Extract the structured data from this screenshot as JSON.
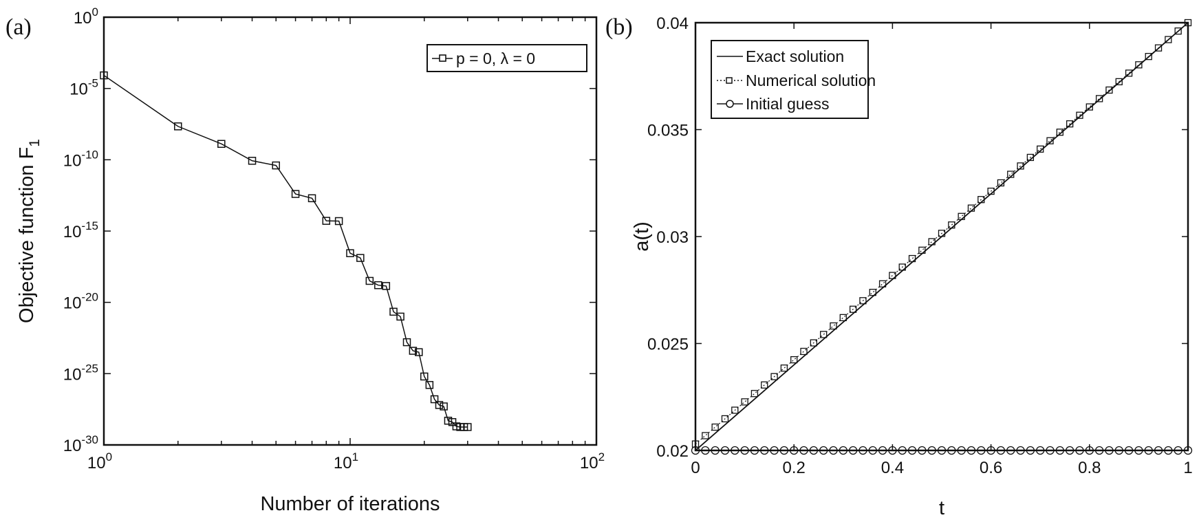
{
  "chart_data": [
    {
      "type": "line",
      "panel_label": "(a)",
      "title": "",
      "xlabel": "Number of iterations",
      "ylabel": "Objective function F",
      "ylabel_subscript": "1",
      "xscale": "log",
      "yscale": "log",
      "xlim": [
        1,
        100
      ],
      "ylim": [
        1e-30,
        1
      ],
      "x_tick_labels": [
        {
          "base": "10",
          "exp": "0"
        },
        {
          "base": "10",
          "exp": "1"
        },
        {
          "base": "10",
          "exp": "2"
        }
      ],
      "y_tick_labels": [
        {
          "base": "10",
          "exp": "0"
        },
        {
          "base": "10",
          "exp": "-5"
        },
        {
          "base": "10",
          "exp": "-10"
        },
        {
          "base": "10",
          "exp": "-15"
        },
        {
          "base": "10",
          "exp": "-20"
        },
        {
          "base": "10",
          "exp": "-25"
        },
        {
          "base": "10",
          "exp": "-30"
        }
      ],
      "legend_position": "top-right",
      "series": [
        {
          "name": "p = 0, λ = 0",
          "marker": "square",
          "line": "solid",
          "x": [
            1,
            2,
            3,
            4,
            5,
            6,
            7,
            8,
            9,
            10,
            11,
            12,
            13,
            14,
            15,
            16,
            17,
            18,
            19,
            20,
            21,
            22,
            23,
            24,
            25,
            26,
            27,
            28,
            29,
            30
          ],
          "y": [
            8.3e-05,
            2.2e-08,
            1.3e-09,
            8.5e-11,
            4e-11,
            4e-13,
            2e-13,
            5.2e-15,
            5e-15,
            2.8e-17,
            1.3e-17,
            3.2e-19,
            1.6e-19,
            1.4e-19,
            2.2e-21,
            1e-21,
            1.6e-23,
            4e-24,
            3.2e-24,
            6.3e-26,
            1.6e-26,
            1.6e-27,
            6.3e-28,
            5e-28,
            5e-29,
            4e-29,
            2e-29,
            1.8e-29,
            1.8e-29,
            1.8e-29
          ]
        }
      ]
    },
    {
      "type": "line",
      "panel_label": "(b)",
      "title": "",
      "xlabel": "t",
      "ylabel": "a(t)",
      "xlim": [
        0,
        1
      ],
      "ylim": [
        0.02,
        0.04
      ],
      "x_ticks": [
        0,
        0.2,
        0.4,
        0.6,
        0.8,
        1
      ],
      "x_tick_labels": [
        "0",
        "0.2",
        "0.4",
        "0.6",
        "0.8",
        "1"
      ],
      "y_ticks": [
        0.02,
        0.025,
        0.03,
        0.035,
        0.04
      ],
      "y_tick_labels": [
        "0.02",
        "0.025",
        "0.03",
        "0.035",
        "0.04"
      ],
      "legend_position": "top-left",
      "t": [
        0,
        0.02,
        0.04,
        0.06,
        0.08,
        0.1,
        0.12,
        0.14,
        0.16,
        0.18,
        0.2,
        0.22,
        0.24,
        0.26,
        0.28,
        0.3,
        0.32,
        0.34,
        0.36,
        0.38,
        0.4,
        0.42,
        0.44,
        0.46,
        0.48,
        0.5,
        0.52,
        0.54,
        0.56,
        0.58,
        0.6,
        0.62,
        0.64,
        0.66,
        0.68,
        0.7,
        0.72,
        0.74,
        0.76,
        0.78,
        0.8,
        0.82,
        0.84,
        0.86,
        0.88,
        0.9,
        0.92,
        0.94,
        0.96,
        0.98,
        1
      ],
      "series": [
        {
          "name": "Exact solution",
          "marker": "none",
          "line": "solid",
          "x": [
            0,
            1
          ],
          "y": [
            0.02,
            0.04
          ]
        },
        {
          "name": "Numerical solution",
          "marker": "square",
          "line": "dotted",
          "y": [
            0.0203,
            0.02069,
            0.02109,
            0.02148,
            0.02188,
            0.02227,
            0.02266,
            0.02306,
            0.02345,
            0.02385,
            0.02424,
            0.02463,
            0.02503,
            0.02542,
            0.02582,
            0.02621,
            0.0266,
            0.027,
            0.02739,
            0.02779,
            0.02818,
            0.02857,
            0.02897,
            0.02936,
            0.02976,
            0.03015,
            0.03054,
            0.03094,
            0.03133,
            0.03173,
            0.03212,
            0.03251,
            0.03291,
            0.0333,
            0.0337,
            0.03409,
            0.03448,
            0.03488,
            0.03527,
            0.03567,
            0.03606,
            0.03645,
            0.03685,
            0.03724,
            0.03764,
            0.03803,
            0.03842,
            0.03882,
            0.03921,
            0.03961,
            0.04
          ]
        },
        {
          "name": "Initial guess",
          "marker": "circle",
          "line": "solid",
          "y": [
            0.02,
            0.02,
            0.02,
            0.02,
            0.02,
            0.02,
            0.02,
            0.02,
            0.02,
            0.02,
            0.02,
            0.02,
            0.02,
            0.02,
            0.02,
            0.02,
            0.02,
            0.02,
            0.02,
            0.02,
            0.02,
            0.02,
            0.02,
            0.02,
            0.02,
            0.02,
            0.02,
            0.02,
            0.02,
            0.02,
            0.02,
            0.02,
            0.02,
            0.02,
            0.02,
            0.02,
            0.02,
            0.02,
            0.02,
            0.02,
            0.02,
            0.02,
            0.02,
            0.02,
            0.02,
            0.02,
            0.02,
            0.02,
            0.02,
            0.02,
            0.02
          ]
        }
      ]
    }
  ]
}
